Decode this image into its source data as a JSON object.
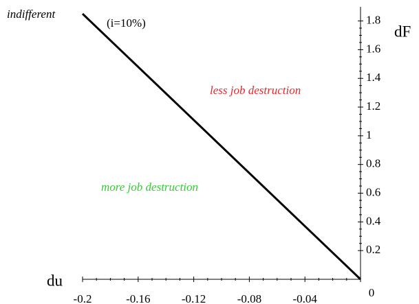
{
  "chart_data": {
    "type": "line",
    "xlabel": "du",
    "ylabel": "dF",
    "x": [
      -0.2,
      0
    ],
    "series": [
      {
        "name": "indifferent",
        "color": "#000000",
        "values": [
          1.85,
          0
        ]
      }
    ],
    "xlim": [
      -0.2,
      0
    ],
    "xticks": [
      -0.2,
      -0.16,
      -0.12,
      -0.08,
      -0.04,
      0
    ],
    "ylim": [
      0,
      1.86
    ],
    "yticks": [
      0.2,
      0.4,
      0.6,
      0.8,
      1,
      1.2,
      1.4,
      1.6,
      1.8
    ],
    "annotations": [
      {
        "text": "(i=10%)",
        "color": "#000000"
      },
      {
        "text": "less job destruction",
        "color": "#e8262a"
      },
      {
        "text": "more job destruction",
        "color": "#33cc33"
      }
    ]
  }
}
